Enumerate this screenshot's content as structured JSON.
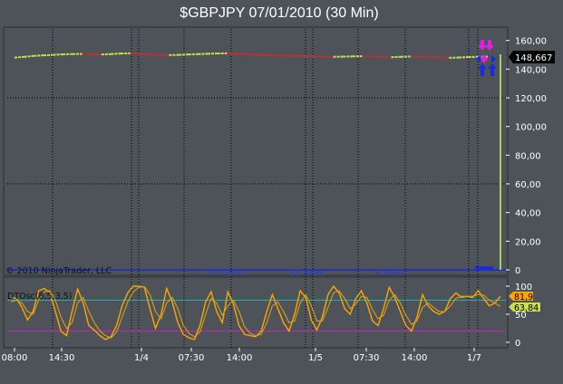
{
  "title": "$GBPJPY  07/01/2010 (30 Min)",
  "copyright": "© 2010 NinjaTrader, LLC",
  "indicator_label": "DTOsc(8,5,3,5)",
  "colors": {
    "background": "#4d5359",
    "price_up": "#c9e04a",
    "price_down": "#d22a2a",
    "osc_fast": "#ffa500",
    "osc_slow": "#d4a020",
    "line_upper": "#20b2aa",
    "line_lower": "#d020c0",
    "current_bar": "#a8d060",
    "arrow_buy": "#1a2adf",
    "arrow_sell": "#e020e0"
  },
  "chart_data": [
    {
      "type": "line",
      "name": "price",
      "ylim": [
        0,
        168
      ],
      "yticks": [
        0,
        20,
        40,
        60,
        80,
        100,
        120,
        140,
        160
      ],
      "ytick_labels": [
        "0",
        "20,00",
        "40,00",
        "60,00",
        "80,00",
        "100,00",
        "120,00",
        "140,00",
        "160,00"
      ],
      "current_value": "148,667",
      "series": [
        {
          "values": [
            148.0,
            148.6,
            149.2,
            149.6,
            149.9,
            150.3,
            150.5,
            150.6,
            150.4,
            150.2,
            150.5,
            150.9,
            151.0,
            150.7,
            150.3,
            150.0,
            149.8,
            149.9,
            150.2,
            150.5,
            150.7,
            150.9,
            151.0,
            150.8,
            150.5,
            150.2,
            149.9,
            149.6,
            149.4,
            149.2,
            149.1,
            148.9,
            148.7,
            148.6,
            148.7,
            148.9,
            149.0,
            148.8,
            148.5,
            148.3,
            148.6,
            148.8,
            148.6,
            148.3,
            148.1,
            147.9,
            148.1,
            148.4,
            148.6,
            148.667
          ]
        }
      ]
    },
    {
      "type": "line",
      "name": "DTOsc(8,5,3,5)",
      "ylim": [
        0,
        100
      ],
      "yticks": [
        0,
        50,
        100
      ],
      "ytick_labels": [
        "0",
        "50",
        "100"
      ],
      "levels": [
        75,
        20
      ],
      "current_values": [
        "81,9",
        "63,84"
      ],
      "series": [
        {
          "name": "fast",
          "values": [
            80,
            78,
            62,
            40,
            55,
            92,
            96,
            88,
            55,
            20,
            12,
            55,
            95,
            70,
            30,
            22,
            12,
            5,
            10,
            30,
            65,
            88,
            100,
            102,
            98,
            60,
            25,
            50,
            96,
            72,
            35,
            14,
            8,
            5,
            30,
            72,
            90,
            55,
            35,
            90,
            68,
            30,
            14,
            12,
            10,
            20,
            55,
            85,
            60,
            35,
            20,
            50,
            92,
            80,
            40,
            22,
            45,
            85,
            100,
            88,
            60,
            50,
            78,
            92,
            70,
            38,
            30,
            60,
            98,
            80,
            55,
            30,
            20,
            45,
            85,
            65,
            55,
            50,
            55,
            78,
            88,
            80,
            82,
            80,
            92,
            78,
            65,
            70,
            81.9
          ]
        },
        {
          "name": "slow",
          "values": [
            72,
            75,
            70,
            55,
            50,
            75,
            90,
            92,
            75,
            45,
            25,
            35,
            70,
            80,
            55,
            35,
            20,
            12,
            8,
            18,
            45,
            72,
            90,
            98,
            99,
            85,
            55,
            42,
            70,
            80,
            60,
            30,
            16,
            10,
            18,
            50,
            78,
            70,
            48,
            65,
            75,
            55,
            28,
            16,
            12,
            14,
            35,
            65,
            72,
            55,
            35,
            38,
            70,
            85,
            65,
            38,
            38,
            62,
            88,
            92,
            78,
            60,
            68,
            82,
            80,
            58,
            42,
            48,
            75,
            85,
            70,
            48,
            32,
            38,
            62,
            70,
            62,
            55,
            55,
            65,
            78,
            82,
            82,
            82,
            85,
            84,
            75,
            70,
            63.84
          ]
        }
      ]
    },
    {
      "type": "line",
      "name": "time-axis",
      "x_tick_labels": [
        "08:00",
        "14:30",
        "1/4",
        "07:30",
        "14:00",
        "1/5",
        "07:30",
        "14:00",
        "1/7"
      ]
    }
  ]
}
